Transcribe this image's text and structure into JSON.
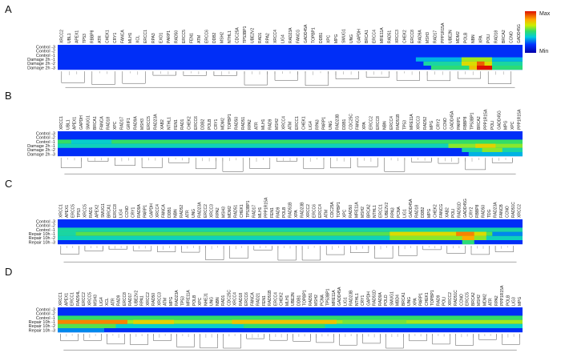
{
  "legend": {
    "max_label": "Max",
    "min_label": "Min"
  },
  "panels": [
    {
      "label": "A",
      "genes": [
        "XRCC2",
        "UBL1",
        "APEX1",
        "TP53",
        "RBBP8",
        "ATR",
        "CHEK1",
        "CRY1",
        "FANCA",
        "MLH1",
        "XCL",
        "ERCC1",
        "RPA3",
        "EXO1",
        "PARP1",
        "RAD50",
        "ERCC5",
        "FEN1",
        "ATM",
        "ERCC6",
        "DDB2",
        "MSH2",
        "NTHL1",
        "CDC25A",
        "TP53BP1",
        "UBE2V2",
        "RAD1",
        "RPA2",
        "XRCC4",
        "LIG4",
        "RAD23A",
        "FANCG",
        "GADD45A",
        "TOPBP1",
        "DDB1",
        "XPC",
        "MPG",
        "SMUG1",
        "UNG",
        "GAPDH",
        "BRCA1",
        "ERCC4",
        "MRE11A",
        "RAD51",
        "XRCC3",
        "CHEK2",
        "ERCC8",
        "RAD9A",
        "MSH3",
        "RAD17",
        "PPP1R15A",
        "UBE2N",
        "MDM2",
        "POLB",
        "NBN",
        "XPA",
        "POLI",
        "RAD18",
        "BRCA2",
        "CCNO",
        "GADD45G"
      ],
      "rows": [
        "Control -3",
        "Control -2",
        "Control -1",
        "Damage 2h -1",
        "Damage 2h -2",
        "Damage 2h -3"
      ],
      "cells": [
        {
          "r": 3,
          "c0": 47,
          "c1": 61,
          "v": 0.35
        },
        {
          "r": 4,
          "c0": 48,
          "c1": 61,
          "v": 0.45
        },
        {
          "r": 5,
          "c0": 49,
          "c1": 61,
          "v": 0.5
        },
        {
          "r": 3,
          "c0": 53,
          "c1": 57,
          "v": 0.62
        },
        {
          "r": 4,
          "c0": 53,
          "c1": 57,
          "v": 0.7
        },
        {
          "r": 5,
          "c0": 54,
          "c1": 57,
          "v": 0.75
        },
        {
          "r": 4,
          "c0": 55,
          "c1": 56,
          "v": 0.9
        },
        {
          "r": 5,
          "c0": 55,
          "c1": 57,
          "v": 1.0
        }
      ]
    },
    {
      "label": "B",
      "genes": [
        "XRCC1",
        "UBL1",
        "APEX1",
        "GAPDH",
        "SMUG1",
        "BRCA1",
        "FANCA",
        "RAD18",
        "XPC",
        "RAD17",
        "GRIF1",
        "RAD9A",
        "MSH3",
        "ERCC5",
        "RAD23A",
        "XAB2",
        "NTHL1",
        "FEN1",
        "RAD1",
        "CHEK2",
        "ERCC6",
        "DDB2",
        "POLB",
        "CRY1",
        "MDM2",
        "TOPBP1",
        "RAD50",
        "RAD51",
        "RPA2",
        "ATR",
        "MLH1",
        "RAD9",
        "MSH2",
        "XRCC4",
        "ATM",
        "ERCC1",
        "CHEK1",
        "LIG4",
        "RPA3",
        "PARP1",
        "UNG",
        "RAD23B",
        "DDB1",
        "CDC25C",
        "FANCG",
        "XPA",
        "ERCC2",
        "ERCC8",
        "NBN",
        "ERCC4",
        "RAD51B",
        "TP53",
        "MRE11A",
        "XRCC3",
        "RAD52",
        "MPG",
        "CRY2",
        "CCNO",
        "GADD45A",
        "PARP1",
        "RBBP8",
        "TP53BP1",
        "BRCA2",
        "PPP1R15A",
        "POLI",
        "GADD45G",
        "MPG",
        "XPC",
        "PPP1R15A"
      ],
      "rows": [
        "Control -3",
        "Control -2",
        "Control -1",
        "Damage 2h -1",
        "Damage 2h -2",
        "Damage 2h -3"
      ],
      "cells": [
        {
          "r": 2,
          "c0": 0,
          "c1": 69,
          "v": 0.52
        },
        {
          "r": 3,
          "c0": 0,
          "c1": 69,
          "v": 0.42
        },
        {
          "r": 2,
          "c0": 2,
          "c1": 8,
          "v": 0.4
        },
        {
          "r": 3,
          "c0": 58,
          "c1": 69,
          "v": 0.6
        },
        {
          "r": 4,
          "c0": 60,
          "c1": 69,
          "v": 0.45
        },
        {
          "r": 5,
          "c0": 61,
          "c1": 69,
          "v": 0.35
        },
        {
          "r": 3,
          "c0": 62,
          "c1": 65,
          "v": 0.72
        },
        {
          "r": 4,
          "c0": 63,
          "c1": 66,
          "v": 0.6
        }
      ]
    },
    {
      "label": "C",
      "genes": [
        "XRCC1",
        "APEX1",
        "ERCC5",
        "TP53",
        "XRCC5",
        "RAD1",
        "APEX2",
        "SMUG1",
        "BRCA1",
        "ERCC8",
        "LIG4",
        "CCNO",
        "CRY1",
        "RAD9A",
        "PARP1",
        "GAPDH",
        "XRCC4",
        "FANCA",
        "DDB1",
        "NBN",
        "RAD52",
        "ATR",
        "UNG",
        "RAD23A",
        "ERCC2",
        "XRCC3",
        "RPA2",
        "MSH3",
        "MDM2",
        "RAD51",
        "CHEK1",
        "TP53BP1",
        "RAD17",
        "MLH1",
        "PPP1R15A",
        "FEN1",
        "RAD9",
        "POLB",
        "RAD51B",
        "XPA",
        "RAD23B",
        "XRCC2",
        "ERCC6",
        "ERCC4",
        "ATM",
        "CDC25A",
        "TOPBP1",
        "XPC",
        "RAD50",
        "MRE11A",
        "MSH2",
        "BRCA2",
        "NTHL1",
        "ERCC1",
        "UBE2V2",
        "RPA3",
        "PCNA",
        "LIG1",
        "GADD45A",
        "RAD18",
        "DDB2",
        "MPG",
        "CHEK2",
        "FANCG",
        "XAB2",
        "POLI",
        "RAD51D",
        "GADD45G",
        "CRY2",
        "RBBP8",
        "RAD50",
        "TDG",
        "RAD23A",
        "FANCB",
        "CCNO",
        "RAD51C",
        "XRCC2"
      ],
      "rows": [
        "Control -3",
        "Control -2",
        "Control -1",
        "Repair 10h -1",
        "Repair 10h -2",
        "Repair 10h -3"
      ],
      "cells": [
        {
          "r": 2,
          "c0": 0,
          "c1": 77,
          "v": 0.45
        },
        {
          "r": 3,
          "c0": 0,
          "c1": 77,
          "v": 0.55
        },
        {
          "r": 4,
          "c0": 0,
          "c1": 77,
          "v": 0.42
        },
        {
          "r": 3,
          "c0": 0,
          "c1": 3,
          "v": 0.45
        },
        {
          "r": 3,
          "c0": 55,
          "c1": 71,
          "v": 0.7
        },
        {
          "r": 4,
          "c0": 55,
          "c1": 71,
          "v": 0.6
        },
        {
          "r": 3,
          "c0": 66,
          "c1": 69,
          "v": 0.85
        },
        {
          "r": 4,
          "c0": 67,
          "c1": 69,
          "v": 0.8
        },
        {
          "r": 5,
          "c0": 67,
          "c1": 69,
          "v": 0.5
        },
        {
          "r": 3,
          "c0": 72,
          "c1": 77,
          "v": 0.3
        }
      ]
    },
    {
      "label": "D",
      "genes": [
        "XRCC1",
        "APEX1",
        "ERCC1",
        "RAD54L",
        "ERCC2",
        "XRCC5",
        "MSH3",
        "LIG4",
        "XCL",
        "ATR",
        "RAD9",
        "ERCC8",
        "RAD17",
        "UBE2V2",
        "RPA1",
        "XRCC2",
        "RAD50",
        "XRCC3",
        "ATM",
        "MPG",
        "RAD23A",
        "TP53",
        "MRE11A",
        "POLB",
        "XPC",
        "NHEJ1",
        "UNG",
        "NBN",
        "RAD1",
        "CDC25C",
        "XRCC4",
        "RAD18",
        "ERCC6",
        "FANCA",
        "RAD21",
        "FEN1",
        "RAD51B",
        "ERCC4",
        "CHEK2",
        "MLH1",
        "UBE2N",
        "DDB1",
        "TOPBP1",
        "RAD51",
        "MSH2",
        "PCNA",
        "TP53BP1",
        "MRE11A",
        "GADD45A",
        "LIG1",
        "RAD23B",
        "NTHL1",
        "CRY1",
        "GAPDH",
        "RAD51D",
        "RAD9A",
        "POLD",
        "SMUG1",
        "MBD4",
        "BRCA1",
        "UNG",
        "XPA",
        "PARP1",
        "CHEK1",
        "TOPBP1",
        "RAD9",
        "POLI",
        "XRCC2",
        "RAD51C",
        "CCNO",
        "ERCC5",
        "BRCA2",
        "MSH2",
        "MDM2",
        "ATR",
        "RPA2",
        "PPP1R15A",
        "POLB",
        "LIG3",
        "MPG"
      ],
      "rows": [
        "Control -3",
        "Control -2",
        "Control -1",
        "Repair 10h -1",
        "Repair 10h -2",
        "Repair 10h -3"
      ],
      "cells": [
        {
          "r": 2,
          "c0": 0,
          "c1": 80,
          "v": 0.52
        },
        {
          "r": 3,
          "c0": 0,
          "c1": 80,
          "v": 0.62
        },
        {
          "r": 4,
          "c0": 0,
          "c1": 80,
          "v": 0.4
        },
        {
          "r": 3,
          "c0": 0,
          "c1": 12,
          "v": 0.85
        },
        {
          "r": 4,
          "c0": 0,
          "c1": 10,
          "v": 0.55
        },
        {
          "r": 3,
          "c0": 13,
          "c1": 20,
          "v": 0.72
        },
        {
          "r": 3,
          "c0": 30,
          "c1": 48,
          "v": 0.75
        },
        {
          "r": 4,
          "c0": 32,
          "c1": 46,
          "v": 0.5
        },
        {
          "r": 3,
          "c0": 49,
          "c1": 60,
          "v": 0.58
        },
        {
          "r": 5,
          "c0": 0,
          "c1": 8,
          "v": 0.3
        }
      ]
    }
  ]
}
